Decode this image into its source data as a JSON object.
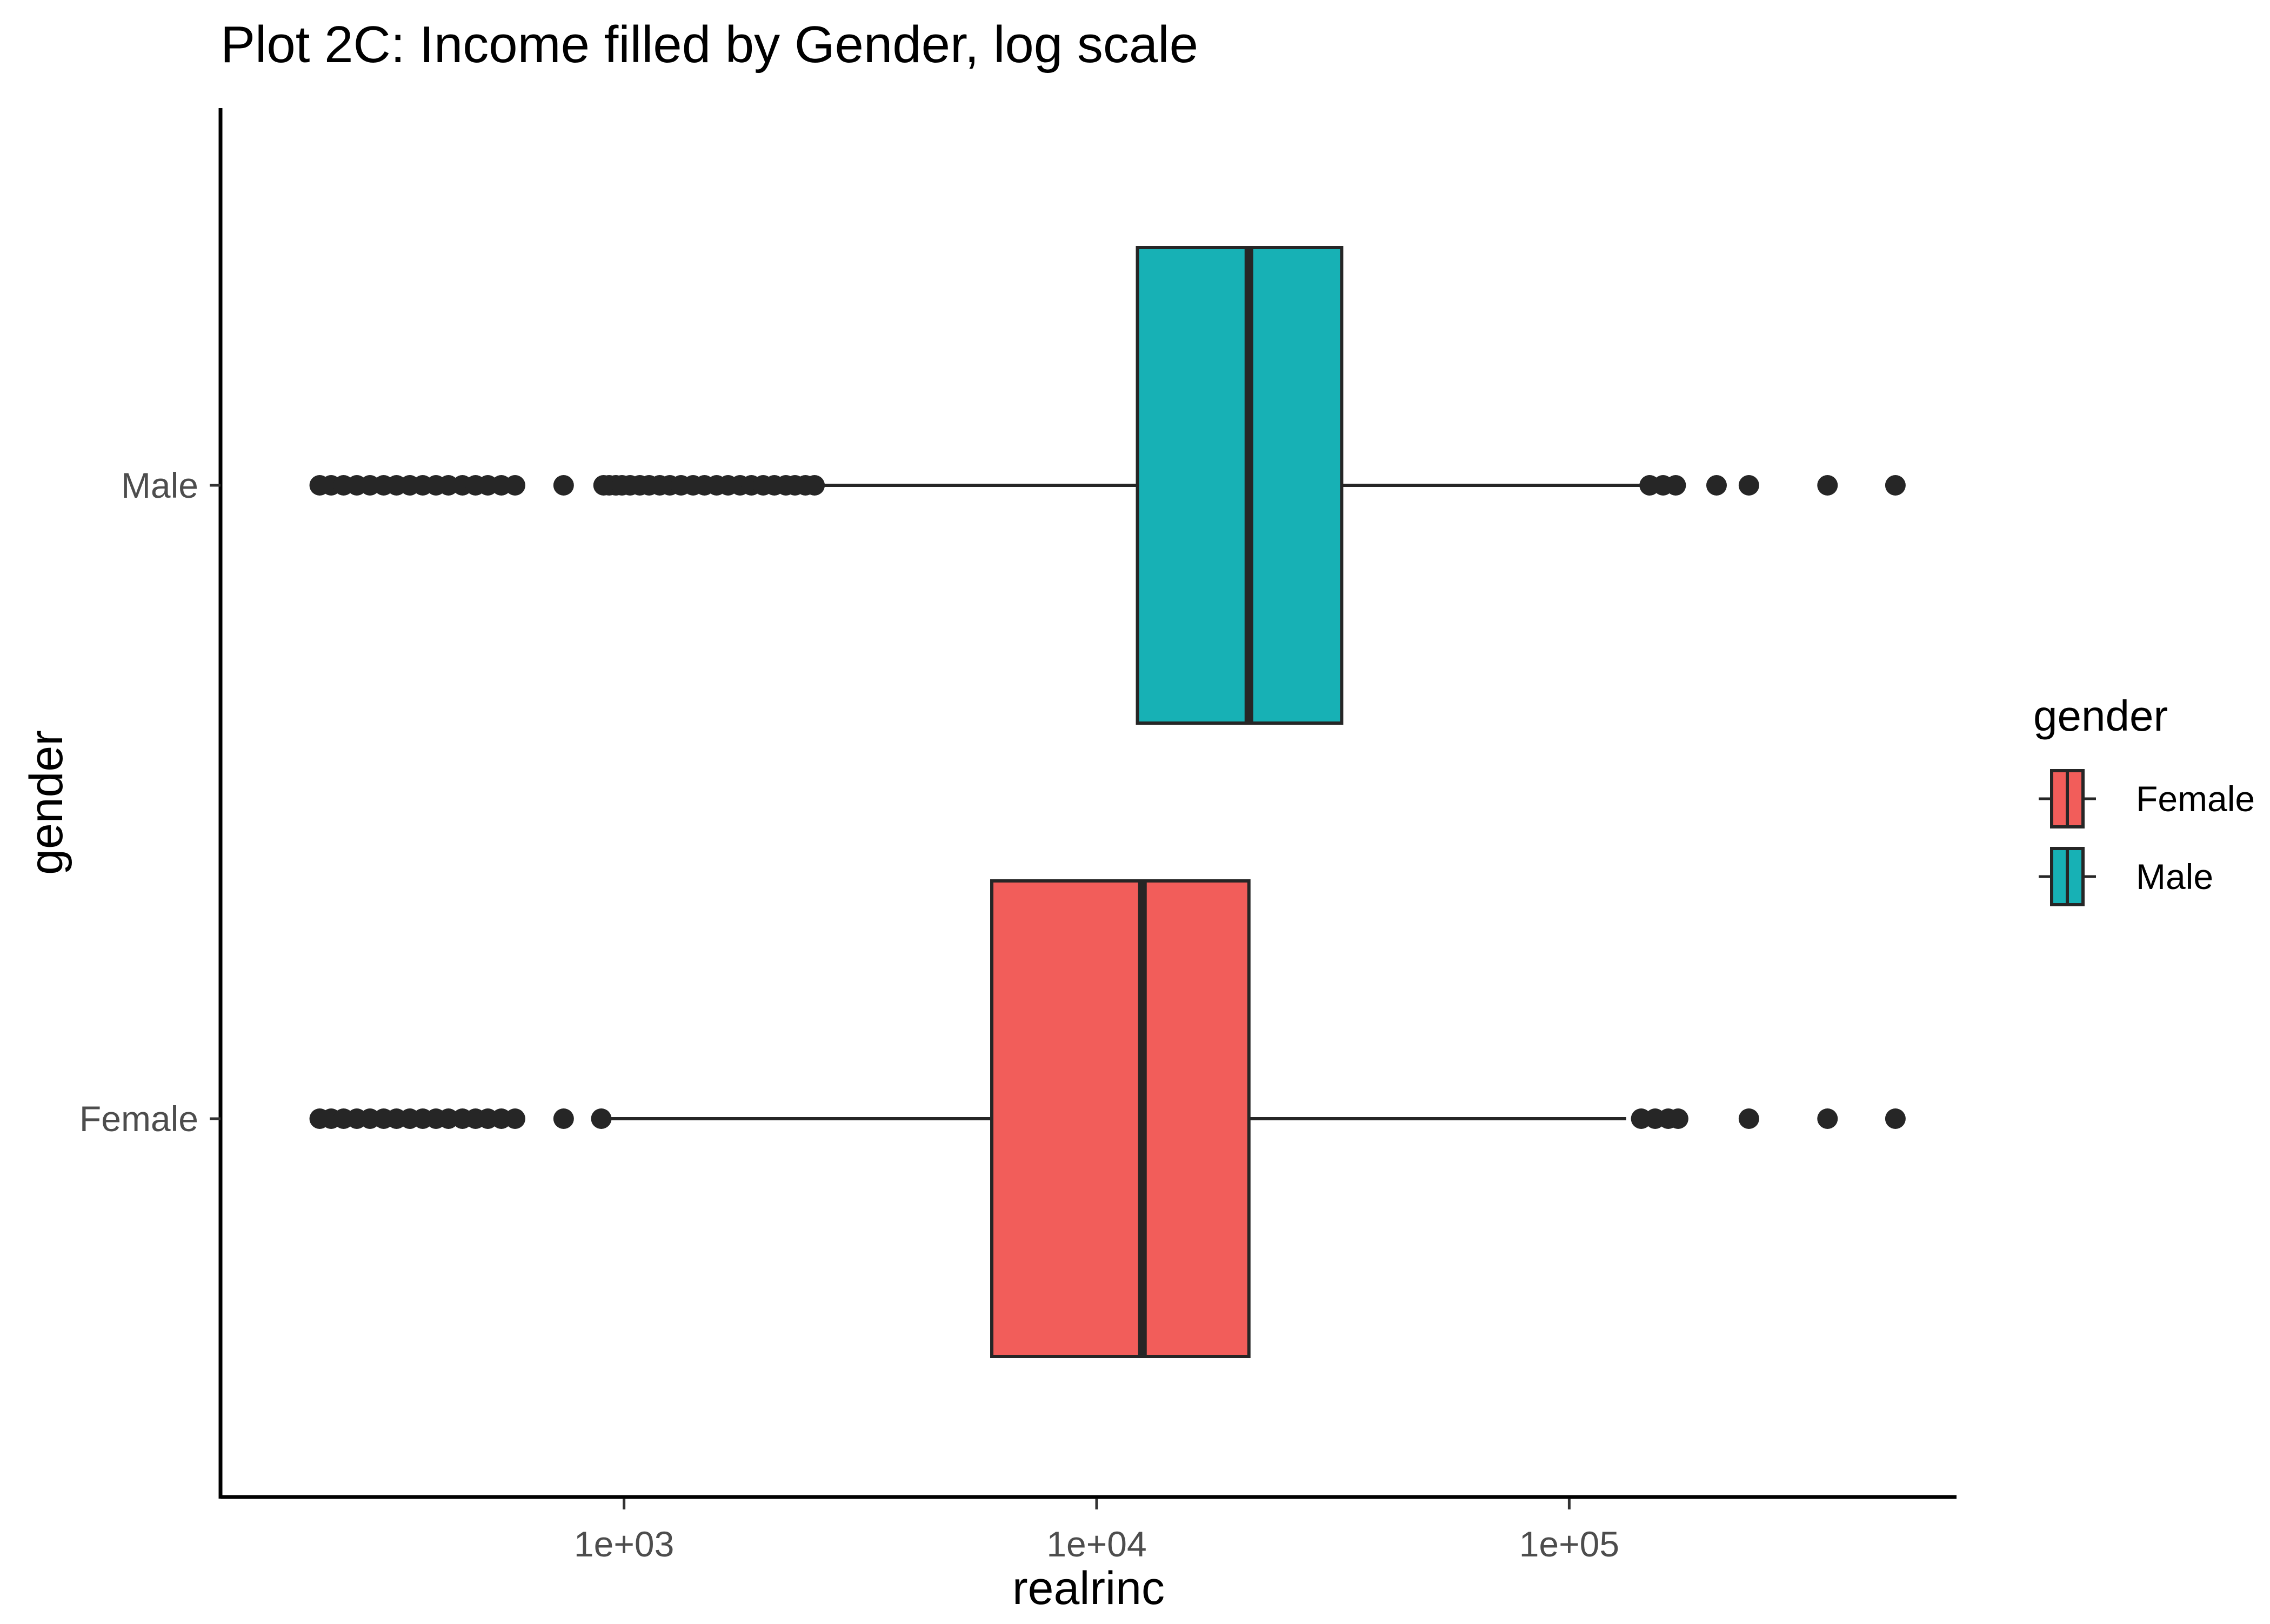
{
  "chart_data": {
    "type": "boxplot",
    "orientation": "horizontal",
    "title": "Plot 2C: Income filled by Gender, log scale",
    "xlabel": "realrinc",
    "ylabel": "gender",
    "x_scale": "log10",
    "xlim": [
      140,
      660000
    ],
    "x_ticks": [
      1000,
      10000,
      100000
    ],
    "x_tick_labels": [
      "1e+03",
      "1e+04",
      "1e+05"
    ],
    "categories": [
      "Male",
      "Female"
    ],
    "legend": {
      "title": "gender",
      "position": "right",
      "entries": [
        {
          "label": "Female",
          "color": "#f25d5a"
        },
        {
          "label": "Male",
          "color": "#17b1b5"
        }
      ]
    },
    "grid": false,
    "series": [
      {
        "name": "Male",
        "color": "#17b1b5",
        "whisker_low": 2600,
        "q1": 12200,
        "median": 21000,
        "q3": 33000,
        "whisker_high": 141000,
        "outliers": [
          227,
          240,
          255,
          272,
          290,
          310,
          330,
          352,
          375,
          400,
          425,
          455,
          485,
          515,
          550,
          588,
          745,
          905,
          930,
          960,
          990,
          1030,
          1080,
          1130,
          1190,
          1250,
          1320,
          1400,
          1480,
          1570,
          1660,
          1760,
          1860,
          1970,
          2080,
          2200,
          2300,
          2420,
          2530,
          148000,
          158000,
          168000,
          205000,
          240000,
          352000,
          490000
        ]
      },
      {
        "name": "Female",
        "color": "#f25d5a",
        "whisker_low": 925,
        "q1": 6000,
        "median": 12500,
        "q3": 21000,
        "whisker_high": 132000,
        "outliers": [
          227,
          240,
          255,
          272,
          290,
          310,
          330,
          352,
          375,
          400,
          425,
          455,
          485,
          515,
          550,
          588,
          745,
          895,
          142000,
          152000,
          162000,
          170000,
          240000,
          352000,
          490000
        ]
      }
    ]
  }
}
